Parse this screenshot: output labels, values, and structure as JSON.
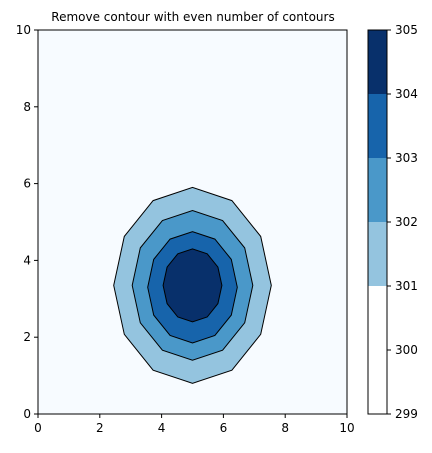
{
  "chart_data": {
    "type": "contour",
    "title": "Remove contour with even number of contours",
    "xlabel": "",
    "ylabel": "",
    "xlim": [
      0,
      10
    ],
    "ylim": [
      0,
      10
    ],
    "xticks": [
      0,
      2,
      4,
      6,
      8,
      10
    ],
    "yticks": [
      0,
      2,
      4,
      6,
      8,
      10
    ],
    "grid": false,
    "background_color": "#f7fbff",
    "levels": [
      299,
      300,
      301,
      302,
      303,
      304,
      305
    ],
    "filled_bands": [
      {
        "range": [
          299,
          300
        ],
        "color": "#ffffff"
      },
      {
        "range": [
          300,
          301
        ],
        "color": "#ffffff"
      },
      {
        "range": [
          301,
          302
        ],
        "color": "#94c4df"
      },
      {
        "range": [
          302,
          303
        ],
        "color": "#4a98c9"
      },
      {
        "range": [
          303,
          304
        ],
        "color": "#1764ab"
      },
      {
        "range": [
          304,
          305
        ],
        "color": "#08306b"
      }
    ],
    "center": [
      5,
      3.35
    ],
    "contours": [
      {
        "level": 301,
        "x_range": [
          2.45,
          7.55
        ],
        "y_range": [
          0.8,
          5.9
        ],
        "color": "#94c4df"
      },
      {
        "level": 302,
        "x_range": [
          3.05,
          6.95
        ],
        "y_range": [
          1.4,
          5.3
        ],
        "color": "#4a98c9"
      },
      {
        "level": 303,
        "x_range": [
          3.55,
          6.45
        ],
        "y_range": [
          1.85,
          4.75
        ],
        "color": "#1764ab"
      },
      {
        "level": 304,
        "x_range": [
          4.05,
          5.95
        ],
        "y_range": [
          2.4,
          4.3
        ],
        "color": "#08306b"
      }
    ],
    "colorbar": {
      "ticks": [
        299,
        300,
        301,
        302,
        303,
        304,
        305
      ],
      "tick_labels": [
        "299",
        "300",
        "301",
        "302",
        "303",
        "304",
        "305"
      ],
      "placement": "right"
    }
  }
}
